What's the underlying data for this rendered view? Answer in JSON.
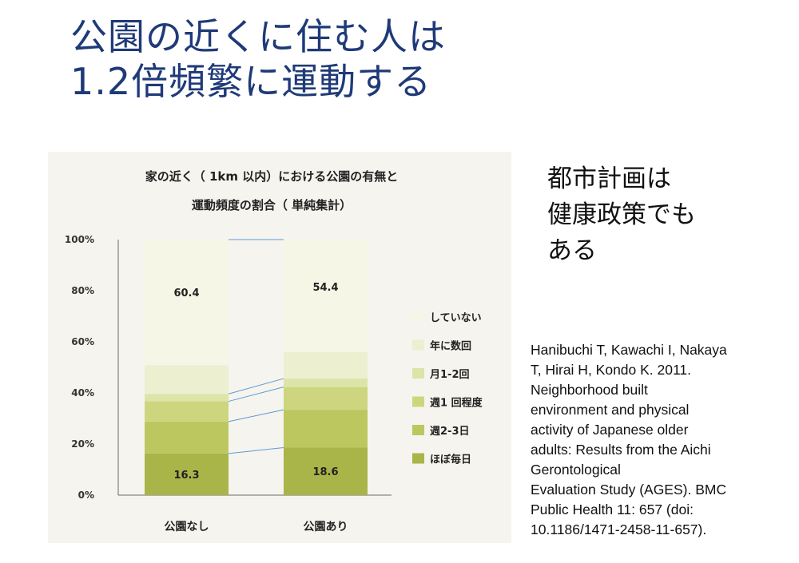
{
  "slide": {
    "title_lines": [
      "公園の近くに住む人は",
      "1.2倍頻繁に運動する"
    ],
    "callout_lines": [
      "都市計画は",
      "健康政策でも",
      "ある"
    ],
    "citation_lines": [
      "Hanibuchi T, Kawachi I, Nakaya",
      "T, Hirai H, Kondo K. 2011.",
      "Neighborhood built",
      "environment and physical",
      "activity of Japanese older",
      "adults: Results from the Aichi",
      "Gerontological",
      "Evaluation Study (AGES). BMC",
      "Public Health 11: 657 (doi:",
      "10.1186/1471-2458-11-657)."
    ]
  },
  "chart_data": {
    "type": "bar",
    "stacked": true,
    "title_lines": [
      "家の近く（ 1km 以内）における公園の有無と",
      "運動頻度の割合（ 単純集計）"
    ],
    "xlabel": "",
    "ylabel": "",
    "ylim": [
      0,
      100
    ],
    "yticks": [
      "0%",
      "20%",
      "40%",
      "60%",
      "80%",
      "100%"
    ],
    "categories": [
      "公園なし",
      "公園あり"
    ],
    "series": [
      {
        "name": "ほぼ毎日",
        "values": [
          16.3,
          18.6
        ],
        "color": "#a9b548"
      },
      {
        "name": "週2-3日",
        "values": [
          12.5,
          14.8
        ],
        "color": "#bcc75f"
      },
      {
        "name": "週1 回程度",
        "values": [
          7.9,
          8.9
        ],
        "color": "#cdd67e"
      },
      {
        "name": "月1-2回",
        "values": [
          2.9,
          3.3
        ],
        "color": "#dde4a8"
      },
      {
        "name": "年に数回",
        "values": [
          11.2,
          10.4
        ],
        "color": "#ecefd0"
      },
      {
        "name": "していない",
        "values": [
          49.2,
          44.0
        ],
        "color": "#f6f6e6"
      }
    ],
    "data_labels": [
      {
        "series": "ほぼ毎日",
        "category": "公園なし",
        "text": "16.3"
      },
      {
        "series": "ほぼ毎日",
        "category": "公園あり",
        "text": "18.6"
      },
      {
        "series": "していない",
        "category": "公園なし",
        "text": "60.4"
      },
      {
        "series": "していない",
        "category": "公園あり",
        "text": "54.4"
      }
    ],
    "legend_position": "right",
    "legend_order": [
      "していない",
      "年に数回",
      "月1-2回",
      "週1 回程度",
      "週2-3日",
      "ほぼ毎日"
    ]
  }
}
